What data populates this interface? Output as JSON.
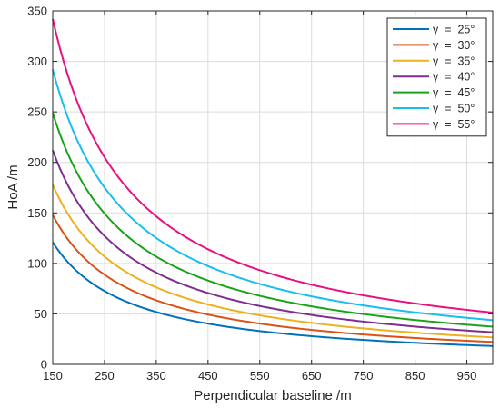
{
  "chart_data": {
    "type": "line",
    "title": "",
    "xlabel": "Perpendicular baseline /m",
    "ylabel": "HoA /m",
    "xlim": [
      150,
      1000
    ],
    "ylim": [
      0,
      350
    ],
    "xticks": [
      150,
      250,
      350,
      450,
      550,
      650,
      750,
      850,
      950
    ],
    "yticks": [
      0,
      50,
      100,
      150,
      200,
      250,
      300,
      350
    ],
    "xtick_labels": [
      "150",
      "250",
      "350",
      "450",
      "550",
      "650",
      "750",
      "850",
      "950"
    ],
    "ytick_labels": [
      "0",
      "50",
      "100",
      "150",
      "200",
      "250",
      "300",
      "350"
    ],
    "grid": true,
    "legend_position": "top-right",
    "x": [
      150,
      200,
      250,
      300,
      350,
      400,
      450,
      500,
      550,
      600,
      650,
      700,
      750,
      800,
      850,
      900,
      950,
      1000
    ],
    "series": [
      {
        "name": "γ  =  25°",
        "color": "#0072BD",
        "values": [
          121,
          90.5,
          72.4,
          60.3,
          51.7,
          45.2,
          40.2,
          36.2,
          32.9,
          30.2,
          27.8,
          25.9,
          24.1,
          22.6,
          21.3,
          20.1,
          19.1,
          18.1
        ]
      },
      {
        "name": "γ  =  30°",
        "color": "#D95319",
        "values": [
          148,
          111,
          88.8,
          74,
          63.4,
          55.5,
          49.3,
          44.4,
          40.4,
          37,
          34.2,
          31.7,
          29.6,
          27.8,
          26.1,
          24.7,
          23.4,
          22.2
        ]
      },
      {
        "name": "γ  =  35°",
        "color": "#EDB120",
        "values": [
          178,
          133.5,
          106.8,
          89,
          76.3,
          66.8,
          59.3,
          53.4,
          48.5,
          44.5,
          41.1,
          38.1,
          35.6,
          33.4,
          31.4,
          29.7,
          28.1,
          26.7
        ]
      },
      {
        "name": "γ  =  40°",
        "color": "#7E2F8E",
        "values": [
          212,
          159,
          127.2,
          106,
          90.9,
          79.5,
          70.7,
          63.6,
          57.8,
          53,
          48.9,
          45.4,
          42.4,
          39.8,
          37.4,
          35.3,
          33.5,
          31.8
        ]
      },
      {
        "name": "γ  =  45°",
        "color": "#1AA31A",
        "values": [
          249,
          186.8,
          149.4,
          124.5,
          106.7,
          93.4,
          83,
          74.7,
          67.9,
          62.3,
          57.5,
          53.4,
          49.8,
          46.7,
          43.9,
          41.5,
          39.3,
          37.4
        ]
      },
      {
        "name": "γ  =  50°",
        "color": "#17BEEF",
        "values": [
          292,
          219,
          175.2,
          146,
          125.1,
          109.5,
          97.3,
          87.6,
          79.6,
          73,
          67.4,
          62.6,
          58.4,
          54.8,
          51.5,
          48.7,
          46.1,
          43.8
        ]
      },
      {
        "name": "γ  =  55°",
        "color": "#E6127F",
        "values": [
          342,
          256.5,
          205.2,
          171,
          146.6,
          128.3,
          114,
          102.6,
          93.3,
          85.5,
          78.9,
          73.3,
          68.4,
          64.1,
          60.4,
          57,
          54,
          51.3
        ]
      }
    ]
  }
}
